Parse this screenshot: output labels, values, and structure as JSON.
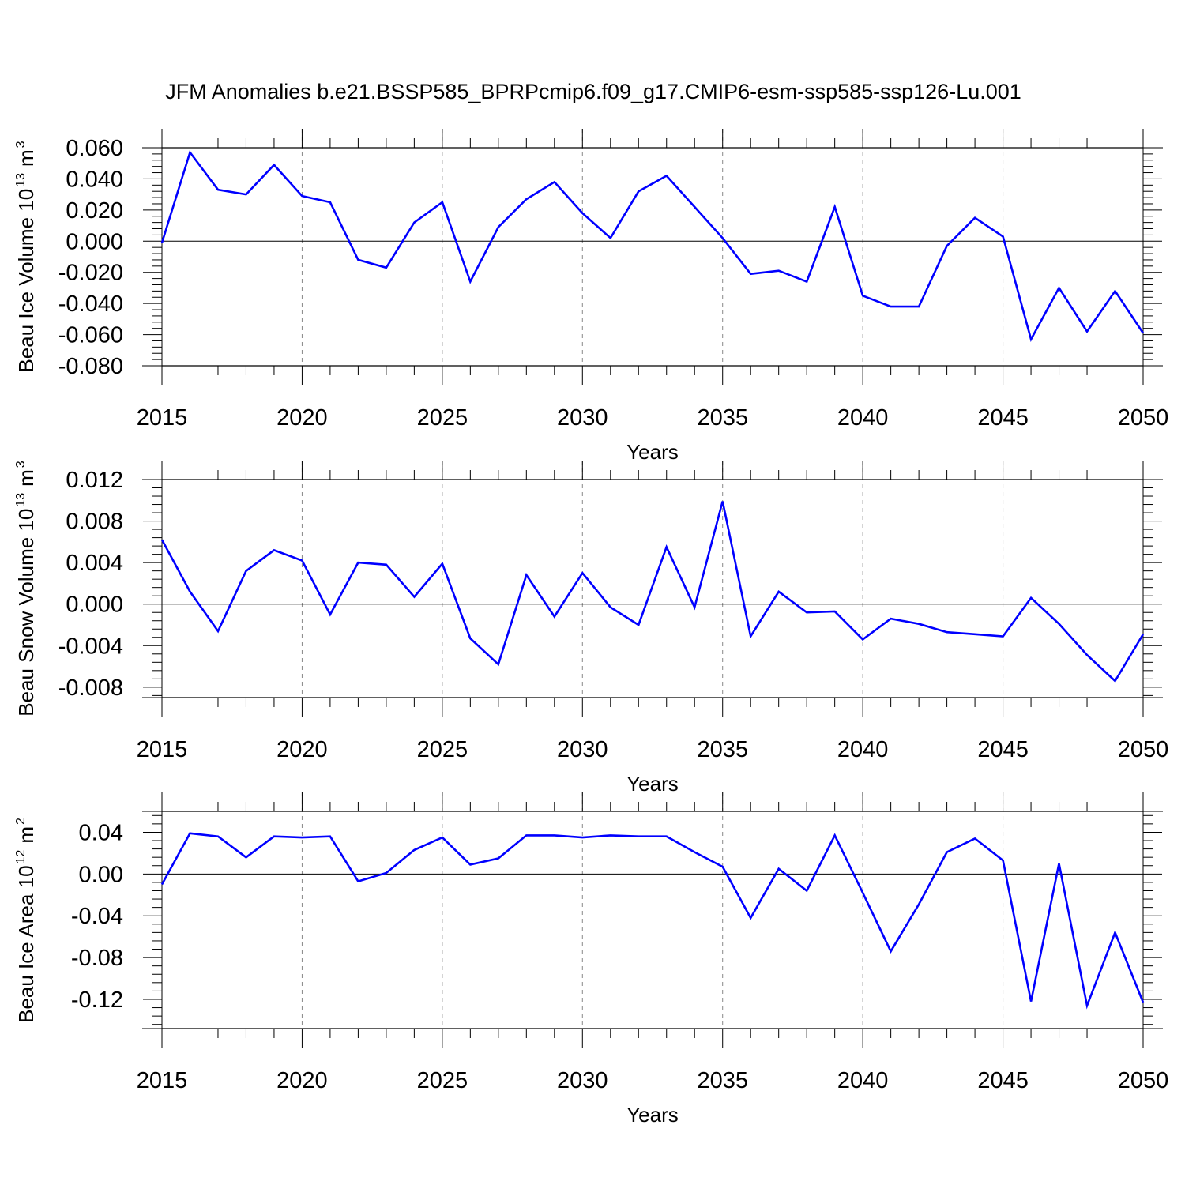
{
  "title": "JFM Anomalies b.e21.BSSP585_BPRPcmip6.f09_g17.CMIP6-esm-ssp585-ssp126-Lu.001",
  "line_color": "#0000ff",
  "chart_data": [
    {
      "type": "line",
      "ylabel_text": "Beau Ice Volume 10",
      "ylabel_exp": "13",
      "ylabel_unit": "m",
      "ylabel_unit_exp": "3",
      "xlabel": "Years",
      "xlim": [
        2015,
        2050
      ],
      "ylim": [
        -0.08,
        0.06
      ],
      "yticks": [
        0.06,
        0.04,
        0.02,
        0.0,
        -0.02,
        -0.04,
        -0.06,
        -0.08
      ],
      "ytick_labels": [
        "0.060",
        "0.040",
        "0.020",
        "0.000",
        "-0.020",
        "-0.040",
        "-0.060",
        "-0.080"
      ],
      "xticks": [
        2015,
        2020,
        2025,
        2030,
        2035,
        2040,
        2045,
        2050
      ],
      "xtick_labels": [
        "2015",
        "2020",
        "2025",
        "2030",
        "2035",
        "2040",
        "2045",
        "2050"
      ],
      "zero_line": true,
      "x": [
        2015,
        2016,
        2017,
        2018,
        2019,
        2020,
        2021,
        2022,
        2023,
        2024,
        2025,
        2026,
        2027,
        2028,
        2029,
        2030,
        2031,
        2032,
        2033,
        2034,
        2035,
        2036,
        2037,
        2038,
        2039,
        2040,
        2041,
        2042,
        2043,
        2044,
        2045,
        2046,
        2047,
        2048,
        2049,
        2050
      ],
      "values": [
        -0.001,
        0.057,
        0.033,
        0.03,
        0.049,
        0.029,
        0.025,
        -0.012,
        -0.017,
        0.012,
        0.025,
        -0.026,
        0.009,
        0.027,
        0.038,
        0.018,
        0.002,
        0.032,
        0.042,
        0.022,
        0.002,
        -0.021,
        -0.019,
        -0.026,
        0.022,
        -0.035,
        -0.042,
        -0.042,
        -0.003,
        0.015,
        0.003,
        -0.063,
        -0.03,
        -0.058,
        -0.032,
        -0.059
      ]
    },
    {
      "type": "line",
      "ylabel_text": "Beau Snow Volume 10",
      "ylabel_exp": "13",
      "ylabel_unit": "m",
      "ylabel_unit_exp": "3",
      "xlabel": "Years",
      "xlim": [
        2015,
        2050
      ],
      "ylim": [
        -0.009,
        0.012
      ],
      "yticks": [
        0.012,
        0.008,
        0.004,
        0.0,
        -0.004,
        -0.008
      ],
      "ytick_labels": [
        "0.012",
        "0.008",
        "0.004",
        "0.000",
        "-0.004",
        "-0.008"
      ],
      "xticks": [
        2015,
        2020,
        2025,
        2030,
        2035,
        2040,
        2045,
        2050
      ],
      "xtick_labels": [
        "2015",
        "2020",
        "2025",
        "2030",
        "2035",
        "2040",
        "2045",
        "2050"
      ],
      "zero_line": true,
      "x": [
        2015,
        2016,
        2017,
        2018,
        2019,
        2020,
        2021,
        2022,
        2023,
        2024,
        2025,
        2026,
        2027,
        2028,
        2029,
        2030,
        2031,
        2032,
        2033,
        2034,
        2035,
        2036,
        2037,
        2038,
        2039,
        2040,
        2041,
        2042,
        2043,
        2044,
        2045,
        2046,
        2047,
        2048,
        2049,
        2050
      ],
      "values": [
        0.0062,
        0.0012,
        -0.0026,
        0.0032,
        0.0052,
        0.0042,
        -0.001,
        0.004,
        0.0038,
        0.0007,
        0.0039,
        -0.0033,
        -0.0058,
        0.0028,
        -0.0012,
        0.003,
        -0.0003,
        -0.002,
        0.0055,
        -0.0003,
        0.0099,
        -0.0031,
        0.0012,
        -0.0008,
        -0.0007,
        -0.0034,
        -0.0014,
        -0.0019,
        -0.0027,
        -0.0029,
        -0.0031,
        0.0006,
        -0.0019,
        -0.0049,
        -0.0074,
        -0.0029
      ]
    },
    {
      "type": "line",
      "ylabel_text": "Beau Ice Area 10",
      "ylabel_exp": "12",
      "ylabel_unit": "m",
      "ylabel_unit_exp": "2",
      "xlabel": "Years",
      "xlim": [
        2015,
        2050
      ],
      "ylim": [
        -0.148,
        0.06
      ],
      "yticks": [
        0.04,
        0.0,
        -0.04,
        -0.08,
        -0.12
      ],
      "ytick_labels": [
        "0.04",
        "0.00",
        "-0.04",
        "-0.08",
        "-0.12"
      ],
      "xticks": [
        2015,
        2020,
        2025,
        2030,
        2035,
        2040,
        2045,
        2050
      ],
      "xtick_labels": [
        "2015",
        "2020",
        "2025",
        "2030",
        "2035",
        "2040",
        "2045",
        "2050"
      ],
      "zero_line": true,
      "x": [
        2015,
        2016,
        2017,
        2018,
        2019,
        2020,
        2021,
        2022,
        2023,
        2024,
        2025,
        2026,
        2027,
        2028,
        2029,
        2030,
        2031,
        2032,
        2033,
        2034,
        2035,
        2036,
        2037,
        2038,
        2039,
        2040,
        2041,
        2042,
        2043,
        2044,
        2045,
        2046,
        2047,
        2048,
        2049,
        2050
      ],
      "values": [
        -0.01,
        0.039,
        0.036,
        0.016,
        0.036,
        0.035,
        0.036,
        -0.007,
        0.001,
        0.023,
        0.035,
        0.009,
        0.015,
        0.037,
        0.037,
        0.035,
        0.037,
        0.036,
        0.036,
        0.021,
        0.007,
        -0.042,
        0.005,
        -0.016,
        0.037,
        -0.018,
        -0.074,
        -0.029,
        0.021,
        0.034,
        0.013,
        -0.122,
        0.01,
        -0.126,
        -0.056,
        -0.123
      ]
    }
  ]
}
